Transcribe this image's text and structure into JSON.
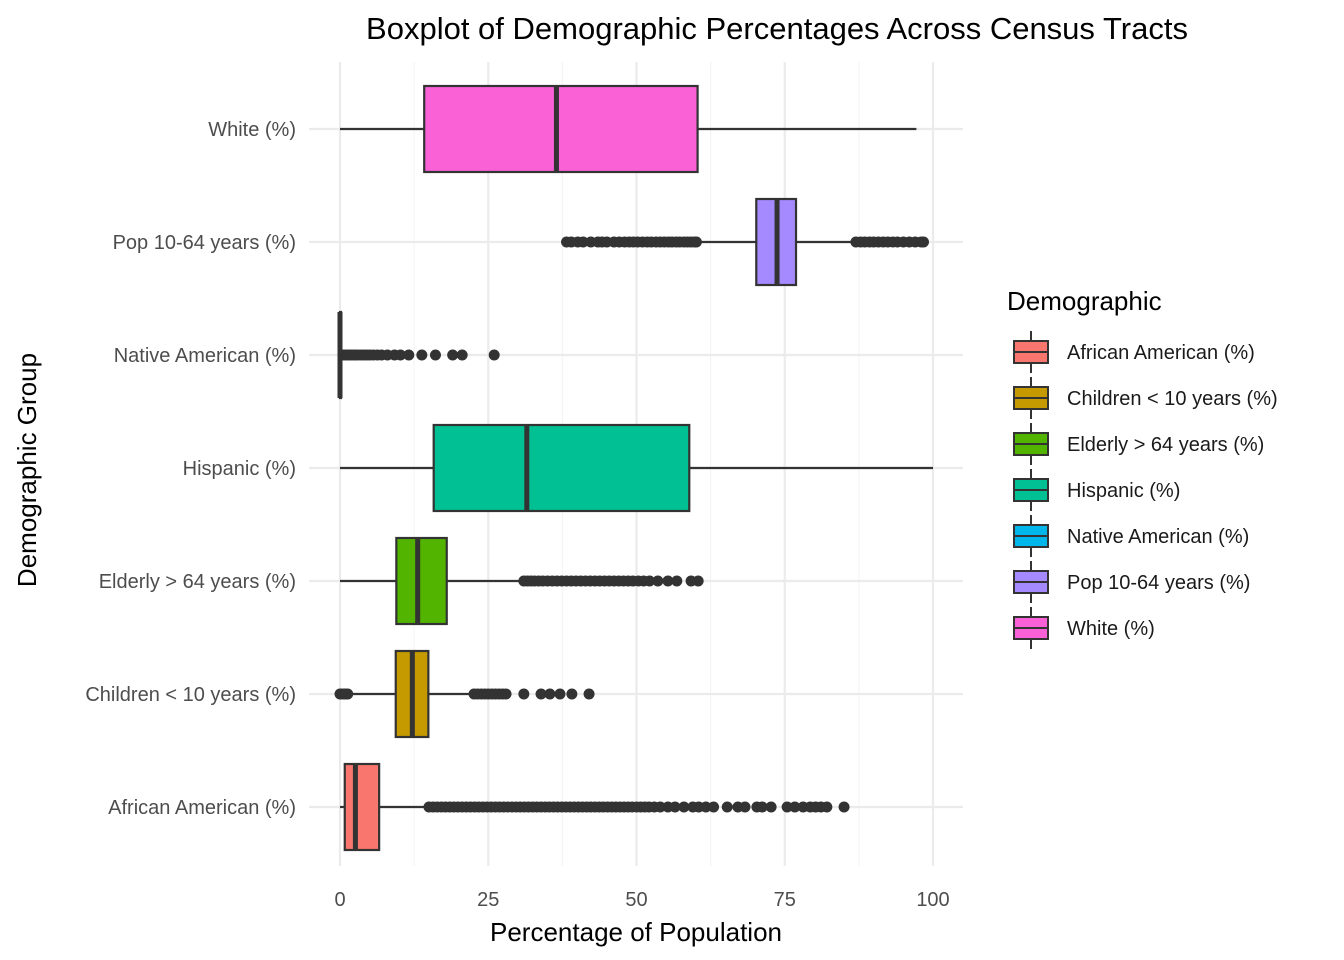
{
  "chart_data": {
    "type": "boxplot",
    "title": "Boxplot of Demographic Percentages Across Census Tracts",
    "xlabel": "Percentage of Population",
    "ylabel": "Demographic Group",
    "xlim": [
      -5,
      105
    ],
    "xticks": [
      0,
      25,
      50,
      75,
      100
    ],
    "legend": {
      "title": "Demographic",
      "position": "right",
      "entries": [
        {
          "label": "African American (%)",
          "color": "#F8766D"
        },
        {
          "label": "Children < 10 years (%)",
          "color": "#C49A00"
        },
        {
          "label": "Elderly > 64 years (%)",
          "color": "#53B400"
        },
        {
          "label": "Hispanic (%)",
          "color": "#00C094"
        },
        {
          "label": "Native American (%)",
          "color": "#00B6EB"
        },
        {
          "label": "Pop 10-64 years (%)",
          "color": "#A58AFF"
        },
        {
          "label": "White (%)",
          "color": "#FB61D7"
        }
      ]
    },
    "categories_top_to_bottom": [
      "White (%)",
      "Pop 10-64 years (%)",
      "Native American (%)",
      "Hispanic (%)",
      "Elderly > 64 years (%)",
      "Children < 10 years (%)",
      "African American (%)"
    ],
    "series": [
      {
        "name": "White (%)",
        "color": "#FB61D7",
        "whisker_low": 0,
        "q1": 14.2,
        "median": 36.5,
        "q3": 60.3,
        "whisker_high": 97.2,
        "outliers": []
      },
      {
        "name": "Pop 10-64 years (%)",
        "color": "#A58AFF",
        "whisker_low": 60.3,
        "q1": 70.2,
        "median": 73.7,
        "q3": 76.9,
        "whisker_high": 86.7,
        "outliers": [
          38.2,
          39.0,
          40.1,
          41.0,
          42.3,
          43.5,
          44.2,
          45.0,
          46.2,
          47.1,
          48.0,
          48.8,
          49.5,
          50.2,
          51.0,
          51.8,
          52.5,
          53.3,
          54.0,
          54.7,
          55.4,
          56.0,
          56.7,
          57.3,
          58.0,
          58.6,
          59.2,
          59.8,
          60.1,
          87.0,
          87.8,
          88.5,
          89.3,
          90.0,
          90.8,
          91.6,
          92.4,
          93.2,
          94.0,
          95.0,
          96.0,
          97.0,
          98.0,
          98.4
        ]
      },
      {
        "name": "Native American (%)",
        "color": "#00B6EB",
        "whisker_low": 0,
        "q1": 0,
        "median": 0,
        "q3": 0.1,
        "whisker_high": 0.3,
        "outliers": [
          0.6,
          1.0,
          1.4,
          1.8,
          2.2,
          2.6,
          3.0,
          3.5,
          4.0,
          4.5,
          5.0,
          5.6,
          6.3,
          7.0,
          8.0,
          9.2,
          10.2,
          11.6,
          13.8,
          16.1,
          19.0,
          20.6,
          26.0
        ]
      },
      {
        "name": "Hispanic (%)",
        "color": "#00C094",
        "whisker_low": 0,
        "q1": 15.8,
        "median": 31.5,
        "q3": 58.9,
        "whisker_high": 100,
        "outliers": []
      },
      {
        "name": "Elderly > 64 years (%)",
        "color": "#53B400",
        "whisker_low": 0,
        "q1": 9.5,
        "median": 13.1,
        "q3": 18.0,
        "whisker_high": 30.8,
        "outliers": [
          31.0,
          31.6,
          32.2,
          32.8,
          33.5,
          34.2,
          35.0,
          35.8,
          36.6,
          37.4,
          38.2,
          39.0,
          39.8,
          40.6,
          41.4,
          42.2,
          43.0,
          43.8,
          44.6,
          45.4,
          46.2,
          47.0,
          47.8,
          48.6,
          49.4,
          50.3,
          51.2,
          52.2,
          53.6,
          55.3,
          56.8,
          59.2,
          60.4
        ]
      },
      {
        "name": "Children < 10 years (%)",
        "color": "#C49A00",
        "whisker_low": 1.5,
        "q1": 9.4,
        "median": 12.2,
        "q3": 14.9,
        "whisker_high": 22.2,
        "outliers": [
          0.0,
          0.3,
          0.7,
          1.0,
          1.3,
          22.6,
          23.2,
          23.8,
          24.4,
          25.0,
          25.6,
          26.2,
          26.8,
          27.4,
          28.0,
          31.0,
          33.9,
          35.4,
          37.1,
          39.1,
          42.0
        ]
      },
      {
        "name": "African American (%)",
        "color": "#F8766D",
        "whisker_low": 0,
        "q1": 0.8,
        "median": 2.6,
        "q3": 6.6,
        "whisker_high": 14.8,
        "outliers": [
          15.0,
          15.7,
          16.4,
          17.1,
          17.8,
          18.5,
          19.2,
          19.9,
          20.6,
          21.3,
          22.0,
          22.7,
          23.4,
          24.1,
          24.8,
          25.5,
          26.2,
          26.9,
          27.6,
          28.3,
          29.0,
          29.7,
          30.4,
          31.1,
          31.8,
          32.5,
          33.2,
          33.9,
          34.6,
          35.3,
          36.0,
          36.7,
          37.4,
          38.1,
          38.8,
          39.5,
          40.2,
          40.9,
          41.6,
          42.3,
          43.0,
          43.7,
          44.4,
          45.1,
          45.8,
          46.5,
          47.2,
          47.9,
          48.6,
          49.3,
          50.0,
          50.7,
          51.4,
          52.1,
          53.0,
          54.0,
          55.3,
          56.5,
          58.0,
          59.5,
          60.5,
          61.7,
          63.0,
          65.3,
          67.1,
          68.3,
          70.3,
          71.2,
          72.7,
          75.4,
          76.7,
          78.1,
          79.3,
          80.2,
          81.1,
          82.1,
          85.0
        ]
      }
    ]
  }
}
